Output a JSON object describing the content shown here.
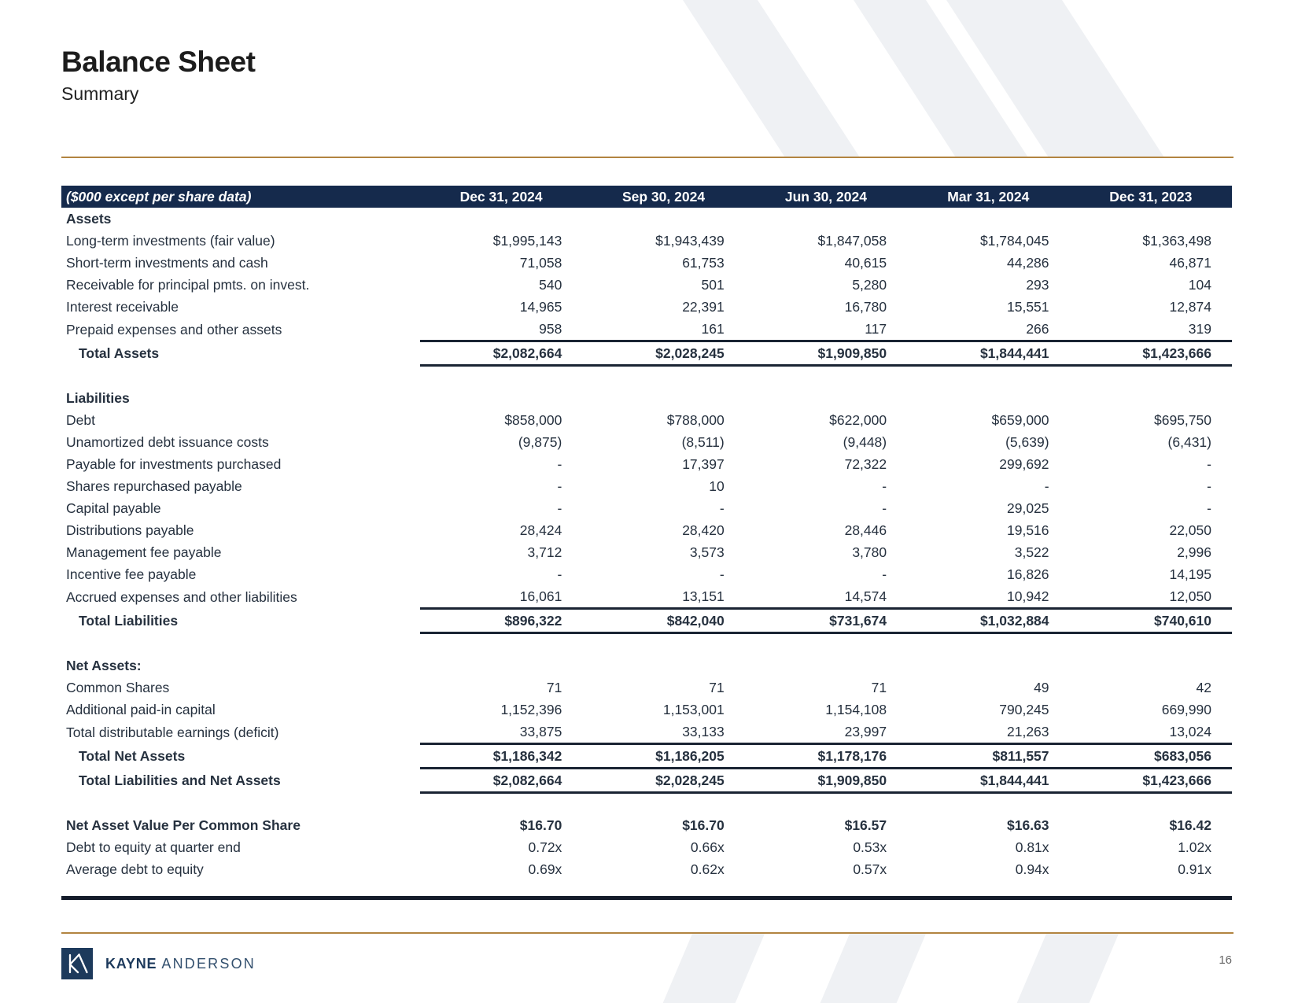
{
  "page": {
    "title": "Balance Sheet",
    "subtitle": "Summary",
    "number": "16"
  },
  "colors": {
    "navy": "#152a4c",
    "gold": "#b28440",
    "text": "#26313f",
    "rule": "#1a2433",
    "stripe": "#eff1f4"
  },
  "footer": {
    "brand_primary": "KAYNE",
    "brand_secondary": "ANDERSON"
  },
  "table": {
    "unit_label": "($000 except per share data)",
    "columns": [
      "Dec 31, 2024",
      "Sep 30, 2024",
      "Jun 30, 2024",
      "Mar 31, 2024",
      "Dec 31, 2023"
    ],
    "rows": [
      {
        "type": "section",
        "label": "Assets"
      },
      {
        "type": "item",
        "label": "Long-term investments (fair value)",
        "values": [
          "$1,995,143",
          "$1,943,439",
          "$1,847,058",
          "$1,784,045",
          "$1,363,498"
        ]
      },
      {
        "type": "item",
        "label": "Short-term investments and cash",
        "values": [
          "71,058",
          "61,753",
          "40,615",
          "44,286",
          "46,871"
        ]
      },
      {
        "type": "item",
        "label": "Receivable for principal pmts. on invest.",
        "values": [
          "540",
          "501",
          "5,280",
          "293",
          "104"
        ]
      },
      {
        "type": "item",
        "label": "Interest receivable",
        "values": [
          "14,965",
          "22,391",
          "16,780",
          "15,551",
          "12,874"
        ]
      },
      {
        "type": "item",
        "label": "Prepaid expenses and other assets",
        "values": [
          "958",
          "161",
          "117",
          "266",
          "319"
        ]
      },
      {
        "type": "total",
        "label": "Total Assets",
        "values": [
          "$2,082,664",
          "$2,028,245",
          "$1,909,850",
          "$1,844,441",
          "$1,423,666"
        ]
      },
      {
        "type": "blank"
      },
      {
        "type": "section",
        "label": "Liabilities"
      },
      {
        "type": "item",
        "label": "Debt",
        "values": [
          "$858,000",
          "$788,000",
          "$622,000",
          "$659,000",
          "$695,750"
        ]
      },
      {
        "type": "item",
        "label": "Unamortized debt issuance costs",
        "values": [
          "(9,875)",
          "(8,511)",
          "(9,448)",
          "(5,639)",
          "(6,431)"
        ]
      },
      {
        "type": "item",
        "label": "Payable for investments purchased",
        "values": [
          "-",
          "17,397",
          "72,322",
          "299,692",
          "-"
        ]
      },
      {
        "type": "item",
        "label": "Shares repurchased payable",
        "values": [
          "-",
          "10",
          "-",
          "-",
          "-"
        ]
      },
      {
        "type": "item",
        "label": "Capital payable",
        "values": [
          "-",
          "-",
          "-",
          "29,025",
          "-"
        ]
      },
      {
        "type": "item",
        "label": "Distributions payable",
        "values": [
          "28,424",
          "28,420",
          "28,446",
          "19,516",
          "22,050"
        ]
      },
      {
        "type": "item",
        "label": "Management fee payable",
        "values": [
          "3,712",
          "3,573",
          "3,780",
          "3,522",
          "2,996"
        ]
      },
      {
        "type": "item",
        "label": "Incentive fee payable",
        "values": [
          "-",
          "-",
          "-",
          "16,826",
          "14,195"
        ]
      },
      {
        "type": "item",
        "label": "Accrued expenses and other liabilities",
        "values": [
          "16,061",
          "13,151",
          "14,574",
          "10,942",
          "12,050"
        ]
      },
      {
        "type": "total",
        "label": "Total Liabilities",
        "values": [
          "$896,322",
          "$842,040",
          "$731,674",
          "$1,032,884",
          "$740,610"
        ]
      },
      {
        "type": "blank"
      },
      {
        "type": "section",
        "label": "Net Assets:"
      },
      {
        "type": "item",
        "label": "Common Shares",
        "values": [
          "71",
          "71",
          "71",
          "49",
          "42"
        ]
      },
      {
        "type": "item",
        "label": "Additional paid-in capital",
        "values": [
          "1,152,396",
          "1,153,001",
          "1,154,108",
          "790,245",
          "669,990"
        ]
      },
      {
        "type": "item",
        "label": "Total distributable earnings (deficit)",
        "values": [
          "33,875",
          "33,133",
          "23,997",
          "21,263",
          "13,024"
        ]
      },
      {
        "type": "total",
        "label": "Total Net Assets",
        "values": [
          "$1,186,342",
          "$1,186,205",
          "$1,178,176",
          "$811,557",
          "$683,056"
        ]
      },
      {
        "type": "total",
        "label": "Total Liabilities and Net Assets",
        "values": [
          "$2,082,664",
          "$2,028,245",
          "$1,909,850",
          "$1,844,441",
          "$1,423,666"
        ]
      },
      {
        "type": "blank"
      },
      {
        "type": "boldrow",
        "label": "Net Asset Value Per Common Share",
        "values": [
          "$16.70",
          "$16.70",
          "$16.57",
          "$16.63",
          "$16.42"
        ]
      },
      {
        "type": "item",
        "label": "Debt to equity at quarter end",
        "values": [
          "0.72x",
          "0.66x",
          "0.53x",
          "0.81x",
          "1.02x"
        ]
      },
      {
        "type": "item",
        "label": "Average debt to equity",
        "values": [
          "0.69x",
          "0.62x",
          "0.57x",
          "0.94x",
          "0.91x"
        ]
      }
    ]
  }
}
